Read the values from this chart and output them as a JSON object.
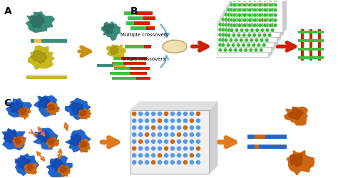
{
  "bg_color": "#ffffff",
  "label_A": "A",
  "label_B": "B",
  "label_C": "C",
  "label_fontsize": 10,
  "label_fontweight": "bold",
  "teal_color": "#3a8c7a",
  "dark_teal": "#2a6a5a",
  "yellow_color": "#c8b820",
  "dark_yellow": "#a09010",
  "light_green": "#44bb44",
  "red_color": "#cc2200",
  "orange_arrow": "#c89010",
  "blue_arrow": "#6aaad4",
  "plate_green": "#33bb33",
  "plate_red": "#dd2222",
  "blue_protein": "#2266cc",
  "orange_protein": "#cc6611",
  "orange_arrow2": "#e07820",
  "text_multiple": "Multiple crossovers",
  "text_single": "Single crossovers",
  "text_fontsize": 5.0
}
